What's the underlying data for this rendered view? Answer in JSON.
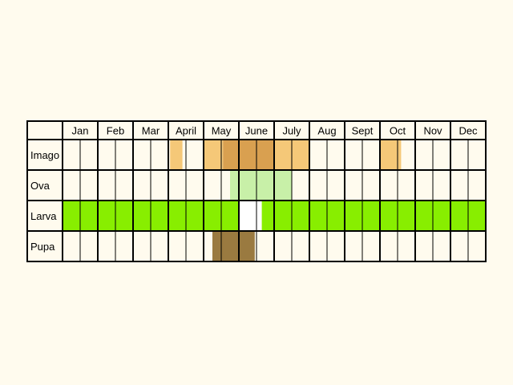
{
  "chart_data": {
    "type": "table",
    "months": [
      "Jan",
      "Feb",
      "Mar",
      "April",
      "May",
      "June",
      "July",
      "Aug",
      "Sept",
      "Oct",
      "Nov",
      "Dec"
    ],
    "stages": [
      {
        "label": "Imago",
        "color": "#f5c878",
        "spans": [
          [
            3.05,
            3.4
          ],
          [
            4.0,
            4.55
          ],
          [
            6.0,
            7.0
          ],
          [
            9.0,
            9.6
          ]
        ],
        "dark_color": "#d9a050",
        "dark_spans": [
          [
            4.55,
            6.0
          ]
        ]
      },
      {
        "label": "Ova",
        "color": "#c8f0a8",
        "spans": [
          [
            4.75,
            6.5
          ]
        ]
      },
      {
        "label": "Larva",
        "color": "#88ee00",
        "spans": [
          [
            0.0,
            5.02
          ],
          [
            5.65,
            12.0
          ]
        ],
        "gap_color": "#ffffff"
      },
      {
        "label": "Pupa",
        "color": "#9a7a40",
        "spans": [
          [
            4.25,
            5.45
          ]
        ]
      }
    ]
  }
}
